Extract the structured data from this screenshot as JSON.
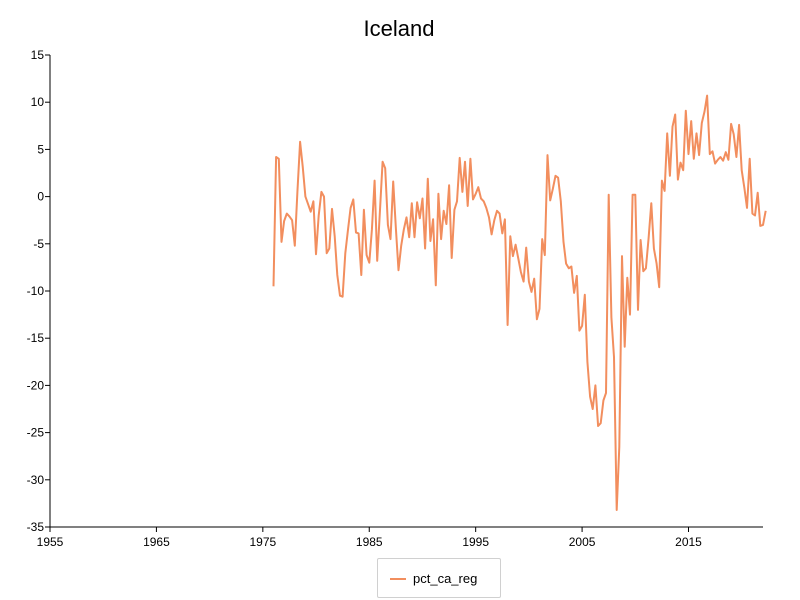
{
  "chart_data": {
    "type": "line",
    "title": "Iceland",
    "xlabel": "",
    "ylabel": "",
    "xlim": [
      1955,
      2022
    ],
    "ylim": [
      -35,
      15
    ],
    "x_ticks": [
      1955,
      1965,
      1975,
      1985,
      1995,
      2005,
      2015
    ],
    "y_ticks": [
      15,
      10,
      5,
      0,
      -5,
      -10,
      -15,
      -20,
      -25,
      -30,
      -35
    ],
    "grid": false,
    "legend_position": "bottom",
    "series": [
      {
        "name": "pct_ca_reg",
        "color": "#f28e5e",
        "points": [
          [
            1976.0,
            -9.5
          ],
          [
            1976.25,
            4.2
          ],
          [
            1976.5,
            4.0
          ],
          [
            1976.75,
            -4.8
          ],
          [
            1977.0,
            -2.6
          ],
          [
            1977.25,
            -1.8
          ],
          [
            1977.5,
            -2.1
          ],
          [
            1977.75,
            -2.5
          ],
          [
            1978.0,
            -5.2
          ],
          [
            1978.25,
            0.5
          ],
          [
            1978.5,
            5.8
          ],
          [
            1978.75,
            3.2
          ],
          [
            1979.0,
            0.0
          ],
          [
            1979.25,
            -0.8
          ],
          [
            1979.5,
            -1.6
          ],
          [
            1979.75,
            -0.5
          ],
          [
            1980.0,
            -6.1
          ],
          [
            1980.25,
            -2.0
          ],
          [
            1980.5,
            0.5
          ],
          [
            1980.75,
            0.0
          ],
          [
            1981.0,
            -6.0
          ],
          [
            1981.25,
            -5.5
          ],
          [
            1981.5,
            -1.3
          ],
          [
            1981.75,
            -4.2
          ],
          [
            1982.0,
            -8.3
          ],
          [
            1982.25,
            -10.5
          ],
          [
            1982.5,
            -10.6
          ],
          [
            1982.75,
            -6.0
          ],
          [
            1983.0,
            -3.5
          ],
          [
            1983.25,
            -1.2
          ],
          [
            1983.5,
            -0.3
          ],
          [
            1983.75,
            -3.8
          ],
          [
            1984.0,
            -3.9
          ],
          [
            1984.25,
            -8.3
          ],
          [
            1984.5,
            -1.4
          ],
          [
            1984.75,
            -6.2
          ],
          [
            1985.0,
            -7.0
          ],
          [
            1985.25,
            -3.5
          ],
          [
            1985.5,
            1.7
          ],
          [
            1985.75,
            -6.8
          ],
          [
            1986.0,
            -1.6
          ],
          [
            1986.25,
            3.7
          ],
          [
            1986.5,
            3.0
          ],
          [
            1986.75,
            -3.0
          ],
          [
            1987.0,
            -4.5
          ],
          [
            1987.25,
            1.6
          ],
          [
            1987.5,
            -3.4
          ],
          [
            1987.75,
            -7.8
          ],
          [
            1988.0,
            -5.2
          ],
          [
            1988.25,
            -3.5
          ],
          [
            1988.5,
            -2.2
          ],
          [
            1988.75,
            -4.3
          ],
          [
            1989.0,
            -0.7
          ],
          [
            1989.25,
            -4.3
          ],
          [
            1989.5,
            -0.6
          ],
          [
            1989.75,
            -2.3
          ],
          [
            1990.0,
            -0.2
          ],
          [
            1990.25,
            -5.5
          ],
          [
            1990.5,
            1.9
          ],
          [
            1990.75,
            -4.7
          ],
          [
            1991.0,
            -2.4
          ],
          [
            1991.25,
            -9.4
          ],
          [
            1991.5,
            0.3
          ],
          [
            1991.75,
            -4.5
          ],
          [
            1992.0,
            -1.5
          ],
          [
            1992.25,
            -2.9
          ],
          [
            1992.5,
            1.2
          ],
          [
            1992.75,
            -6.5
          ],
          [
            1993.0,
            -1.4
          ],
          [
            1993.25,
            -0.5
          ],
          [
            1993.5,
            4.1
          ],
          [
            1993.75,
            0.5
          ],
          [
            1994.0,
            3.7
          ],
          [
            1994.25,
            -1.0
          ],
          [
            1994.5,
            4.0
          ],
          [
            1994.75,
            -0.3
          ],
          [
            1995.0,
            0.3
          ],
          [
            1995.25,
            1.0
          ],
          [
            1995.5,
            -0.2
          ],
          [
            1995.75,
            -0.5
          ],
          [
            1996.0,
            -1.2
          ],
          [
            1996.25,
            -2.2
          ],
          [
            1996.5,
            -4.0
          ],
          [
            1996.75,
            -2.5
          ],
          [
            1997.0,
            -1.5
          ],
          [
            1997.25,
            -1.8
          ],
          [
            1997.5,
            -3.9
          ],
          [
            1997.75,
            -2.4
          ],
          [
            1998.0,
            -13.6
          ],
          [
            1998.25,
            -4.2
          ],
          [
            1998.5,
            -6.3
          ],
          [
            1998.75,
            -5.1
          ],
          [
            1999.0,
            -6.5
          ],
          [
            1999.25,
            -8.0
          ],
          [
            1999.5,
            -9.0
          ],
          [
            1999.75,
            -5.4
          ],
          [
            2000.0,
            -9.0
          ],
          [
            2000.25,
            -10.1
          ],
          [
            2000.5,
            -8.7
          ],
          [
            2000.75,
            -13.0
          ],
          [
            2001.0,
            -11.9
          ],
          [
            2001.25,
            -4.5
          ],
          [
            2001.5,
            -6.2
          ],
          [
            2001.75,
            4.4
          ],
          [
            2002.0,
            -0.4
          ],
          [
            2002.25,
            0.8
          ],
          [
            2002.5,
            2.2
          ],
          [
            2002.75,
            2.0
          ],
          [
            2003.0,
            -0.5
          ],
          [
            2003.25,
            -4.8
          ],
          [
            2003.5,
            -7.1
          ],
          [
            2003.75,
            -7.6
          ],
          [
            2004.0,
            -7.4
          ],
          [
            2004.25,
            -10.2
          ],
          [
            2004.5,
            -8.4
          ],
          [
            2004.75,
            -14.2
          ],
          [
            2005.0,
            -13.7
          ],
          [
            2005.25,
            -10.4
          ],
          [
            2005.5,
            -17.5
          ],
          [
            2005.75,
            -21.2
          ],
          [
            2006.0,
            -22.5
          ],
          [
            2006.25,
            -20.0
          ],
          [
            2006.5,
            -24.3
          ],
          [
            2006.75,
            -24.0
          ],
          [
            2007.0,
            -21.6
          ],
          [
            2007.25,
            -20.8
          ],
          [
            2007.5,
            0.2
          ],
          [
            2007.75,
            -12.8
          ],
          [
            2008.0,
            -17.0
          ],
          [
            2008.25,
            -33.2
          ],
          [
            2008.5,
            -26.5
          ],
          [
            2008.75,
            -6.3
          ],
          [
            2009.0,
            -15.9
          ],
          [
            2009.25,
            -8.6
          ],
          [
            2009.5,
            -12.5
          ],
          [
            2009.75,
            0.2
          ],
          [
            2010.0,
            0.2
          ],
          [
            2010.25,
            -12.0
          ],
          [
            2010.5,
            -4.6
          ],
          [
            2010.75,
            -7.9
          ],
          [
            2011.0,
            -7.6
          ],
          [
            2011.25,
            -4.4
          ],
          [
            2011.5,
            -0.7
          ],
          [
            2011.75,
            -5.5
          ],
          [
            2012.0,
            -7.1
          ],
          [
            2012.25,
            -9.6
          ],
          [
            2012.5,
            1.7
          ],
          [
            2012.75,
            0.6
          ],
          [
            2013.0,
            6.7
          ],
          [
            2013.25,
            2.2
          ],
          [
            2013.5,
            7.4
          ],
          [
            2013.75,
            8.7
          ],
          [
            2014.0,
            1.8
          ],
          [
            2014.25,
            3.6
          ],
          [
            2014.5,
            2.8
          ],
          [
            2014.75,
            9.1
          ],
          [
            2015.0,
            4.5
          ],
          [
            2015.25,
            8.0
          ],
          [
            2015.5,
            4.0
          ],
          [
            2015.75,
            6.7
          ],
          [
            2016.0,
            4.4
          ],
          [
            2016.25,
            7.8
          ],
          [
            2016.5,
            9.0
          ],
          [
            2016.75,
            10.7
          ],
          [
            2017.0,
            4.5
          ],
          [
            2017.25,
            4.8
          ],
          [
            2017.5,
            3.5
          ],
          [
            2017.75,
            3.9
          ],
          [
            2018.0,
            4.2
          ],
          [
            2018.25,
            3.8
          ],
          [
            2018.5,
            4.7
          ],
          [
            2018.75,
            3.9
          ],
          [
            2019.0,
            7.7
          ],
          [
            2019.25,
            6.6
          ],
          [
            2019.5,
            4.2
          ],
          [
            2019.75,
            7.6
          ],
          [
            2020.0,
            2.8
          ],
          [
            2020.25,
            0.9
          ],
          [
            2020.5,
            -1.2
          ],
          [
            2020.75,
            4.0
          ],
          [
            2021.0,
            -1.8
          ],
          [
            2021.25,
            -2.0
          ],
          [
            2021.5,
            0.4
          ],
          [
            2021.75,
            -3.1
          ],
          [
            2022.0,
            -3.0
          ],
          [
            2022.25,
            -1.5
          ]
        ]
      }
    ]
  }
}
